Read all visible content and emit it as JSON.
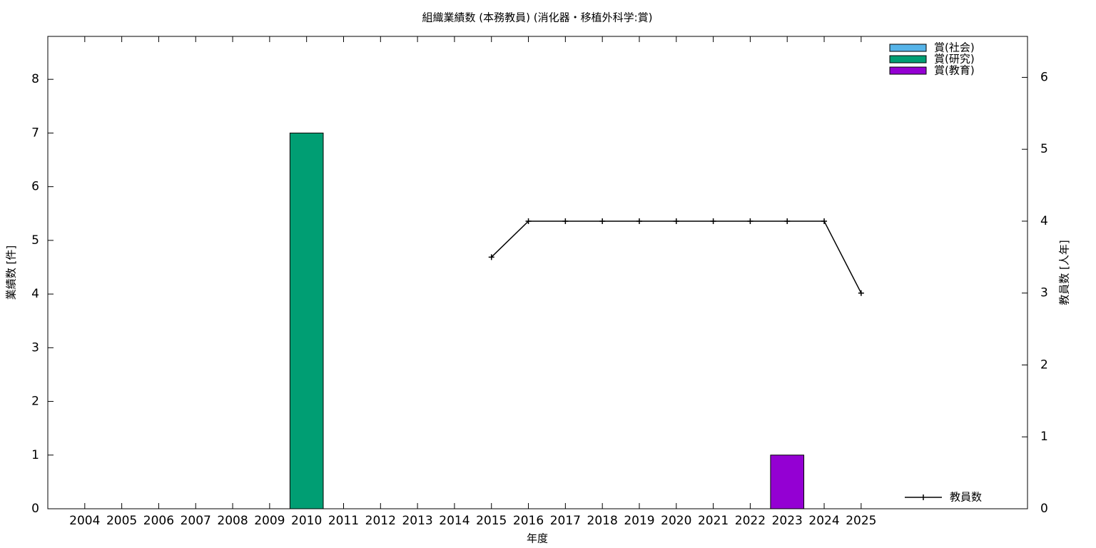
{
  "chart_data": {
    "type": "bar",
    "title": "組織業績数 (本務教員) (消化器・移植外科学:賞)",
    "x_label": "年度",
    "y_label": "業績数 [件]",
    "y2_label": "教員数 [人年]",
    "categories": [
      "2004",
      "2005",
      "2006",
      "2007",
      "2008",
      "2009",
      "2010",
      "2011",
      "2012",
      "2013",
      "2014",
      "2015",
      "2016",
      "2017",
      "2018",
      "2019",
      "2020",
      "2021",
      "2022",
      "2023",
      "2024",
      "2025"
    ],
    "series": [
      {
        "name": "賞(社会)",
        "color": "#56b4e9",
        "values": [
          0,
          0,
          0,
          0,
          0,
          0,
          0,
          0,
          0,
          0,
          0,
          0,
          0,
          0,
          0,
          0,
          0,
          0,
          0,
          0,
          0,
          0
        ]
      },
      {
        "name": "賞(研究)",
        "color": "#009e73",
        "values": [
          0,
          0,
          0,
          0,
          0,
          0,
          7,
          0,
          0,
          0,
          0,
          0,
          0,
          0,
          0,
          0,
          0,
          0,
          0,
          0,
          0,
          0
        ]
      },
      {
        "name": "賞(教育)",
        "color": "#9400d3",
        "values": [
          0,
          0,
          0,
          0,
          0,
          0,
          0,
          0,
          0,
          0,
          0,
          0,
          0,
          0,
          0,
          0,
          0,
          0,
          0,
          1,
          0,
          0
        ]
      },
      {
        "name": "教員数",
        "color": "#000000",
        "type": "line",
        "axis": "y2",
        "values": [
          null,
          null,
          null,
          null,
          null,
          null,
          null,
          null,
          null,
          null,
          null,
          3.5,
          4,
          4,
          4,
          4,
          4,
          4,
          4,
          4,
          4,
          3
        ]
      }
    ],
    "ylim": [
      0,
      8.8
    ],
    "yticks": [
      0,
      1,
      2,
      3,
      4,
      5,
      6,
      7,
      8
    ],
    "y2lim": [
      0,
      6.57
    ],
    "y2ticks": [
      0,
      1,
      2,
      3,
      4,
      5,
      6
    ]
  }
}
